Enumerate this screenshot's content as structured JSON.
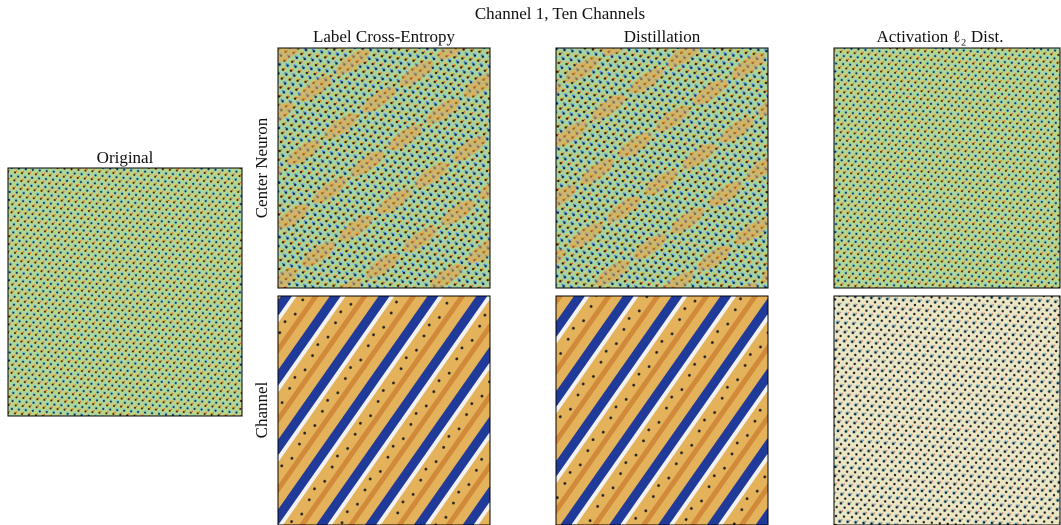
{
  "title": "Channel 1, Ten Channels",
  "original": "Original",
  "columns": [
    "Label Cross-Entropy",
    "Distillation",
    "Activation ℓ₂ Dist."
  ],
  "rows": [
    "Center Neuron",
    "Channel"
  ]
}
